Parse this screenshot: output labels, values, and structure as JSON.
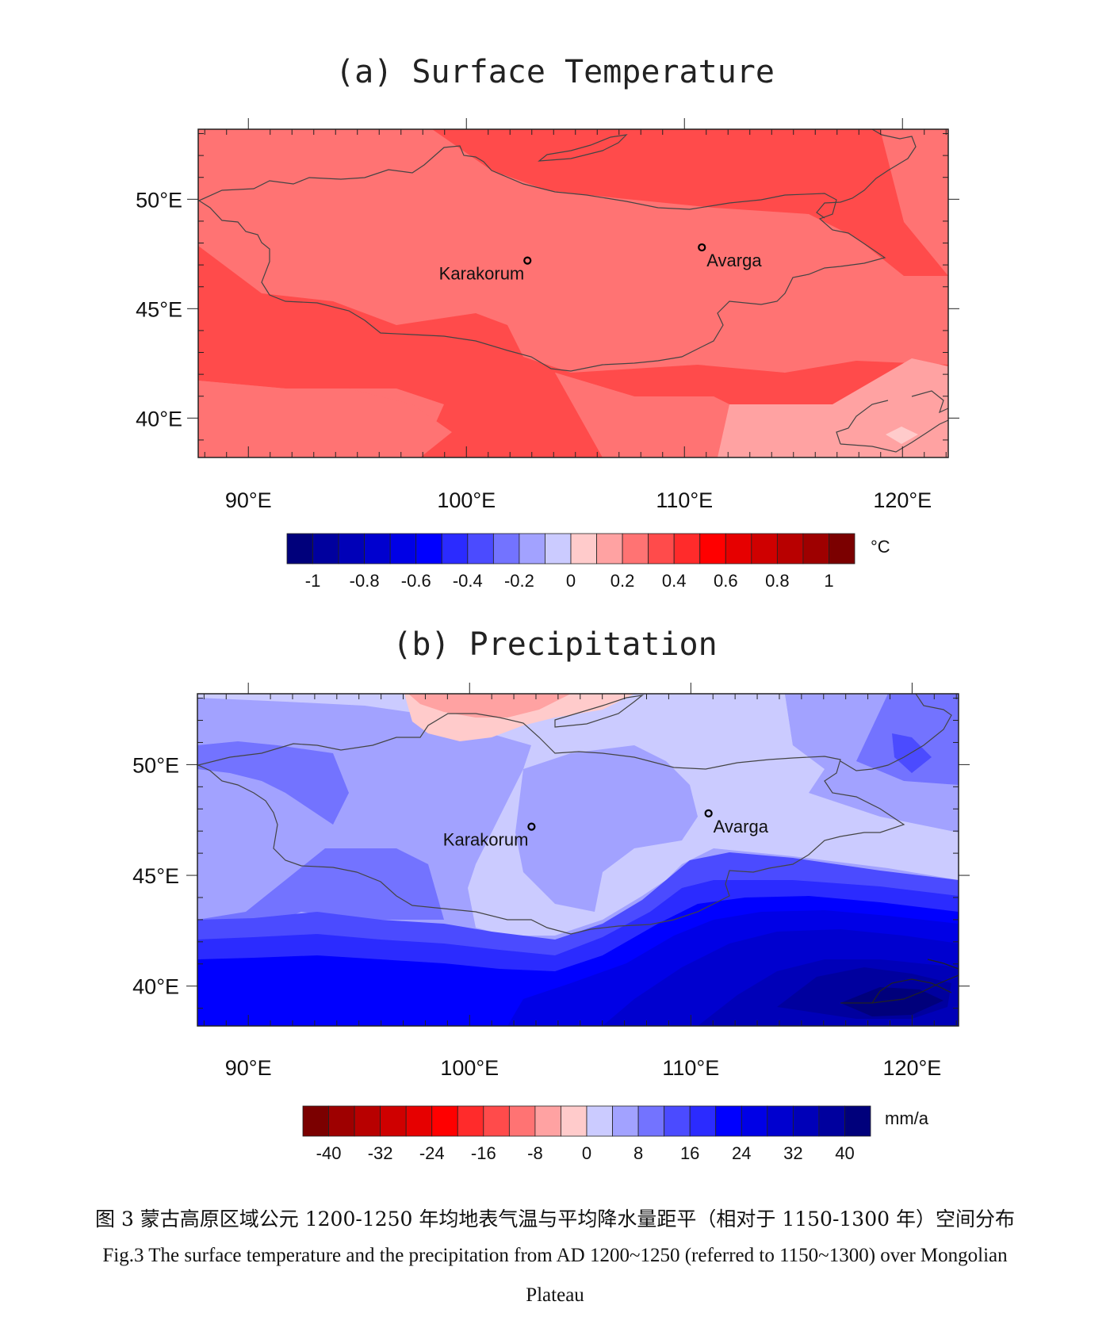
{
  "chart_data": [
    {
      "type": "filled-contour-map",
      "title": "(a) Surface Temperature",
      "x_ticks": [
        "90°E",
        "100°E",
        "110°E",
        "120°E"
      ],
      "y_ticks": [
        "50°E",
        "45°E",
        "40°E"
      ],
      "x_tick_values": [
        90,
        100,
        110,
        120
      ],
      "y_tick_values": [
        50,
        45,
        40
      ],
      "xlim": [
        87.7,
        122.1
      ],
      "ylim": [
        38.2,
        53.2
      ],
      "colorbar": {
        "unit": "°C",
        "tick_labels": [
          "-1",
          "-0.8",
          "-0.6",
          "-0.4",
          "-0.2",
          "0",
          "0.2",
          "0.4",
          "0.6",
          "0.8",
          "1"
        ],
        "colors": [
          "#00007b",
          "#00009e",
          "#0000b8",
          "#0000cf",
          "#0000e6",
          "#0000ff",
          "#2b2bff",
          "#4b4bff",
          "#7373ff",
          "#a2a2ff",
          "#cbcbff",
          "#ffcbcb",
          "#ffa2a2",
          "#ff7373",
          "#ff4b4b",
          "#ff2b2b",
          "#ff0000",
          "#e60000",
          "#cf0000",
          "#b80000",
          "#9e0000",
          "#7b0000"
        ]
      },
      "field_levels": {
        "light_0_to_0.1": "#ffcbcb",
        "0.1_to_0.2": "#ffa2a2",
        "0.2_to_0.3": "#ff7373",
        "0.3_to_0.4": "#ff4b4b"
      },
      "sites": [
        {
          "name": "Karakorum",
          "lon": 102.8,
          "lat": 47.2
        },
        {
          "name": "Avarga",
          "lon": 110.8,
          "lat": 47.8
        }
      ]
    },
    {
      "type": "filled-contour-map",
      "title": "(b) Precipitation",
      "x_ticks": [
        "90°E",
        "100°E",
        "110°E",
        "120°E"
      ],
      "y_ticks": [
        "50°E",
        "45°E",
        "40°E"
      ],
      "x_tick_values": [
        90,
        100,
        110,
        120
      ],
      "y_tick_values": [
        50,
        45,
        40
      ],
      "xlim": [
        87.7,
        122.1
      ],
      "ylim": [
        38.2,
        53.2
      ],
      "colorbar": {
        "unit": "mm/a",
        "tick_labels": [
          "-40",
          "-32",
          "-24",
          "-16",
          "-8",
          "0",
          "8",
          "16",
          "24",
          "32",
          "40"
        ],
        "colors": [
          "#7b0000",
          "#9e0000",
          "#b80000",
          "#cf0000",
          "#e60000",
          "#ff0000",
          "#ff2b2b",
          "#ff4b4b",
          "#ff7373",
          "#ffa2a2",
          "#ffcbcb",
          "#cbcbff",
          "#a2a2ff",
          "#7373ff",
          "#4b4bff",
          "#2b2bff",
          "#0000ff",
          "#0000e6",
          "#0000cf",
          "#0000b8",
          "#00009e",
          "#00007b"
        ]
      },
      "sites": [
        {
          "name": "Karakorum",
          "lon": 102.8,
          "lat": 47.2
        },
        {
          "name": "Avarga",
          "lon": 110.8,
          "lat": 47.8
        }
      ]
    }
  ],
  "caption": {
    "chinese": "图 3  蒙古高原区域公元 1200-1250 年均地表气温与平均降水量距平（相对于 1150-1300 年）空间分布",
    "english_line1": "Fig.3 The surface temperature and the precipitation from AD 1200~1250 (referred to 1150~1300) over Mongolian",
    "english_line2": "Plateau"
  }
}
